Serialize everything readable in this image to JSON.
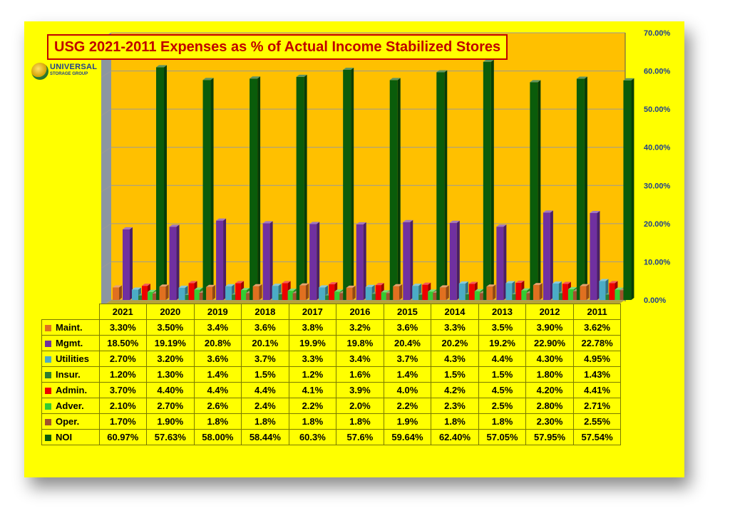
{
  "chart_data": {
    "type": "bar",
    "title": "USG 2021-2011 Expenses as % of Actual Income Stabilized Stores",
    "categories": [
      "2021",
      "2020",
      "2019",
      "2018",
      "2017",
      "2016",
      "2015",
      "2014",
      "2013",
      "2012",
      "2011"
    ],
    "ylim": [
      0,
      70
    ],
    "yticks": [
      "0.00%",
      "10.00%",
      "20.00%",
      "30.00%",
      "40.00%",
      "50.00%",
      "60.00%",
      "70.00%"
    ],
    "grid": true,
    "legend_position": "table below chart",
    "series": [
      {
        "name": "Maint.",
        "color": "#e07020",
        "values": [
          3.3,
          3.5,
          3.4,
          3.6,
          3.8,
          3.2,
          3.6,
          3.3,
          3.5,
          3.9,
          3.62
        ],
        "labels": [
          "3.30%",
          "3.50%",
          "3.4%",
          "3.6%",
          "3.8%",
          "3.2%",
          "3.6%",
          "3.3%",
          "3.5%",
          "3.90%",
          "3.62%"
        ]
      },
      {
        "name": "Mgmt.",
        "color": "#7030a0",
        "values": [
          18.5,
          19.19,
          20.8,
          20.1,
          19.9,
          19.8,
          20.4,
          20.2,
          19.2,
          22.9,
          22.78
        ],
        "labels": [
          "18.50%",
          "19.19%",
          "20.8%",
          "20.1%",
          "19.9%",
          "19.8%",
          "20.4%",
          "20.2%",
          "19.2%",
          "22.90%",
          "22.78%"
        ]
      },
      {
        "name": "Utilities",
        "color": "#4bacc6",
        "values": [
          2.7,
          3.2,
          3.6,
          3.7,
          3.3,
          3.4,
          3.7,
          4.3,
          4.4,
          4.3,
          4.95
        ],
        "labels": [
          "2.70%",
          "3.20%",
          "3.6%",
          "3.7%",
          "3.3%",
          "3.4%",
          "3.7%",
          "4.3%",
          "4.4%",
          "4.30%",
          "4.95%"
        ]
      },
      {
        "name": "Insur.",
        "color": "#2e7d32",
        "values": [
          1.2,
          1.3,
          1.4,
          1.5,
          1.2,
          1.6,
          1.4,
          1.5,
          1.5,
          1.8,
          1.43
        ],
        "labels": [
          "1.20%",
          "1.30%",
          "1.4%",
          "1.5%",
          "1.2%",
          "1.6%",
          "1.4%",
          "1.5%",
          "1.5%",
          "1.80%",
          "1.43%"
        ]
      },
      {
        "name": "Admin.",
        "color": "#ee0000",
        "values": [
          3.7,
          4.4,
          4.4,
          4.4,
          4.1,
          3.9,
          4.0,
          4.2,
          4.5,
          4.2,
          4.41
        ],
        "labels": [
          "3.70%",
          "4.40%",
          "4.4%",
          "4.4%",
          "4.1%",
          "3.9%",
          "4.0%",
          "4.2%",
          "4.5%",
          "4.20%",
          "4.41%"
        ]
      },
      {
        "name": "Adver.",
        "color": "#33cc33",
        "values": [
          2.1,
          2.7,
          2.6,
          2.4,
          2.2,
          2.0,
          2.2,
          2.3,
          2.5,
          2.8,
          2.71
        ],
        "labels": [
          "2.10%",
          "2.70%",
          "2.6%",
          "2.4%",
          "2.2%",
          "2.0%",
          "2.2%",
          "2.3%",
          "2.5%",
          "2.80%",
          "2.71%"
        ]
      },
      {
        "name": "Oper.",
        "color": "#a0522d",
        "values": [
          1.7,
          1.9,
          1.8,
          1.8,
          1.8,
          1.8,
          1.9,
          1.8,
          1.8,
          2.3,
          2.55
        ],
        "labels": [
          "1.70%",
          "1.90%",
          "1.8%",
          "1.8%",
          "1.8%",
          "1.8%",
          "1.9%",
          "1.8%",
          "1.8%",
          "2.30%",
          "2.55%"
        ]
      },
      {
        "name": "NOI",
        "color": "#0a5c0a",
        "values": [
          60.97,
          57.63,
          58.0,
          58.44,
          60.3,
          57.6,
          59.64,
          62.4,
          57.05,
          57.95,
          57.54
        ],
        "labels": [
          "60.97%",
          "57.63%",
          "58.00%",
          "58.44%",
          "60.3%",
          "57.6%",
          "59.64%",
          "62.40%",
          "57.05%",
          "57.95%",
          "57.54%"
        ]
      }
    ]
  },
  "logo": {
    "line1": "UNIVERSAL",
    "line2": "STORAGE GROUP"
  },
  "colors": {
    "background": "#ffff00",
    "plot_area": "#ffc000",
    "side_wall": "#8c96a0",
    "title": "#c00000"
  }
}
